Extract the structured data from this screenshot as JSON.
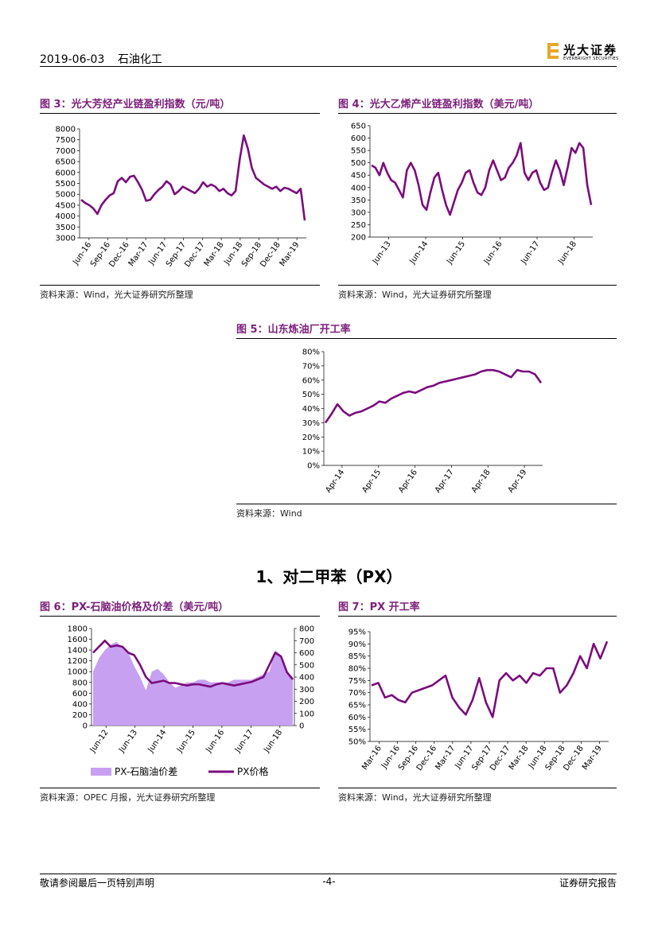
{
  "header": {
    "date": "2019-06-03",
    "category": "石油化工",
    "logo_cn": "光大证券",
    "logo_en": "EVERBRIGHT SECURITIES"
  },
  "section": {
    "title": "1、对二甲苯（PX）"
  },
  "footer": {
    "left": "敬请参阅最后一页特别声明",
    "center": "-4-",
    "right": "证券研究报告"
  },
  "colors": {
    "accent": "#7b1f7a",
    "line": "#7b0c7e",
    "area": "#c7a0f2",
    "logo": "#e8a72a"
  },
  "figures": [
    {
      "id": "fig3",
      "title": "图 3：光大芳烃产业链盈利指数（元/吨）",
      "source": "资料来源：Wind，光大证券研究所整理",
      "chart_data": {
        "type": "line",
        "title": "光大芳烃产业链盈利指数（元/吨）",
        "ylim": [
          3000,
          8000
        ],
        "yticks": [
          "3000",
          "3500",
          "4000",
          "4500",
          "5000",
          "5500",
          "6000",
          "6500",
          "7000",
          "7500",
          "8000"
        ],
        "xlabels": [
          "Jun-16",
          "Sep-16",
          "Dec-16",
          "Mar-17",
          "Jun-17",
          "Sep-17",
          "Dec-17",
          "Mar-18",
          "Jun-18",
          "Sep-18",
          "Dec-18",
          "Mar-19"
        ],
        "series": [
          {
            "name": "盈利指数",
            "values": [
              4750,
              4600,
              4500,
              4350,
              4100,
              4500,
              4750,
              4950,
              5050,
              5600,
              5750,
              5550,
              5800,
              5850,
              5550,
              5200,
              4700,
              4750,
              5000,
              5200,
              5350,
              5600,
              5450,
              5000,
              5150,
              5350,
              5250,
              5150,
              5050,
              5250,
              5550,
              5350,
              5450,
              5350,
              5150,
              5250,
              5050,
              4950,
              5150,
              6600,
              7700,
              7100,
              6200,
              5750,
              5600,
              5450,
              5350,
              5250,
              5350,
              5150,
              5300,
              5250,
              5150,
              5050,
              5250,
              3800
            ]
          }
        ]
      }
    },
    {
      "id": "fig4",
      "title": "图 4：光大乙烯产业链盈利指数（美元/吨）",
      "source": "资料来源：Wind，光大证券研究所整理",
      "chart_data": {
        "type": "line",
        "title": "光大乙烯产业链盈利指数（美元/吨）",
        "ylim": [
          200,
          650
        ],
        "yticks": [
          "200",
          "250",
          "300",
          "350",
          "400",
          "450",
          "500",
          "550",
          "600",
          "650"
        ],
        "xlabels": [
          "Jun-13",
          "Jun-14",
          "Jun-15",
          "Jun-16",
          "Jun-17",
          "Jun-18"
        ],
        "series": [
          {
            "name": "盈利指数",
            "values": [
              490,
              480,
              450,
              500,
              460,
              430,
              420,
              390,
              360,
              470,
              500,
              470,
              410,
              330,
              310,
              380,
              440,
              460,
              390,
              330,
              290,
              340,
              390,
              420,
              460,
              470,
              420,
              380,
              370,
              400,
              470,
              510,
              470,
              430,
              440,
              480,
              500,
              530,
              580,
              460,
              430,
              460,
              470,
              420,
              390,
              400,
              460,
              510,
              470,
              410,
              480,
              560,
              540,
              580,
              560,
              410,
              330
            ]
          }
        ]
      }
    },
    {
      "id": "fig5",
      "title": "图 5：山东炼油厂开工率",
      "source": "资料来源：Wind",
      "chart_data": {
        "type": "line",
        "title": "山东炼油厂开工率",
        "ylim": [
          0,
          80
        ],
        "yticks": [
          "0%",
          "10%",
          "20%",
          "30%",
          "40%",
          "50%",
          "60%",
          "70%",
          "80%"
        ],
        "xlabels": [
          "Apr-14",
          "Apr-15",
          "Apr-16",
          "Apr-17",
          "Apr-18",
          "Apr-19"
        ],
        "series": [
          {
            "name": "开工率(%)",
            "values": [
              30,
              36,
              43,
              38,
              35,
              37,
              38,
              40,
              42,
              45,
              44,
              47,
              49,
              51,
              52,
              51,
              53,
              55,
              56,
              58,
              59,
              60,
              61,
              62,
              63,
              64,
              66,
              67,
              67,
              66,
              64,
              62,
              67,
              66,
              66,
              64,
              58
            ]
          }
        ]
      }
    },
    {
      "id": "fig6",
      "title": "图 6：PX-石脑油价格及价差（美元/吨）",
      "source": "资料来源：OPEC 月报，光大证券研究所整理",
      "chart_data": {
        "type": "area",
        "title": "PX-石脑油价格及价差（美元/吨）",
        "ylim_left": [
          0,
          1800
        ],
        "ylim_right": [
          0,
          800
        ],
        "yticks_left": [
          "0",
          "200",
          "400",
          "600",
          "800",
          "1000",
          "1200",
          "1400",
          "1600",
          "1800"
        ],
        "yticks_right": [
          "0",
          "100",
          "200",
          "300",
          "400",
          "500",
          "600",
          "700",
          "800"
        ],
        "xlabels": [
          "Jun-12",
          "Jun-13",
          "Jun-14",
          "Jun-15",
          "Jun-16",
          "Jun-17",
          "Jun-18"
        ],
        "legend": [
          "PX-石脑油价差",
          "PX价格"
        ],
        "series": [
          {
            "name": "PX-石脑油价差",
            "axis": "left",
            "values": [
              1000,
              1250,
              1400,
              1500,
              1550,
              1450,
              1350,
              1100,
              900,
              650,
              1000,
              1050,
              950,
              800,
              700,
              750,
              800,
              800,
              850,
              850,
              800,
              800,
              800,
              800,
              850,
              850,
              850,
              850,
              900,
              950,
              1000,
              1400,
              1300,
              1000,
              900
            ]
          },
          {
            "name": "PX价格",
            "axis": "right",
            "values": [
              600,
              650,
              700,
              650,
              660,
              650,
              600,
              580,
              500,
              400,
              350,
              360,
              370,
              350,
              350,
              340,
              330,
              340,
              340,
              330,
              320,
              340,
              350,
              340,
              330,
              340,
              350,
              360,
              380,
              400,
              500,
              600,
              570,
              440,
              380
            ]
          }
        ]
      }
    },
    {
      "id": "fig7",
      "title": "图 7：PX 开工率",
      "source": "资料来源：Wind，光大证券研究所整理",
      "chart_data": {
        "type": "line",
        "title": "PX 开工率",
        "ylim": [
          50,
          95
        ],
        "yticks": [
          "50%",
          "55%",
          "60%",
          "65%",
          "70%",
          "75%",
          "80%",
          "85%",
          "90%",
          "95%"
        ],
        "xlabels": [
          "Mar-16",
          "Jun-16",
          "Sep-16",
          "Dec-16",
          "Mar-17",
          "Jun-17",
          "Sep-17",
          "Dec-17",
          "Mar-18",
          "Jun-18",
          "Sep-18",
          "Dec-18",
          "Mar-19"
        ],
        "series": [
          {
            "name": "开工率(%)",
            "values": [
              73,
              74,
              68,
              69,
              67,
              66,
              70,
              71,
              72,
              73,
              75,
              77,
              68,
              64,
              61,
              67,
              76,
              66,
              60,
              75,
              78,
              75,
              77,
              74,
              78,
              77,
              80,
              80,
              70,
              73,
              78,
              85,
              80,
              90,
              84,
              91
            ]
          }
        ]
      }
    }
  ]
}
